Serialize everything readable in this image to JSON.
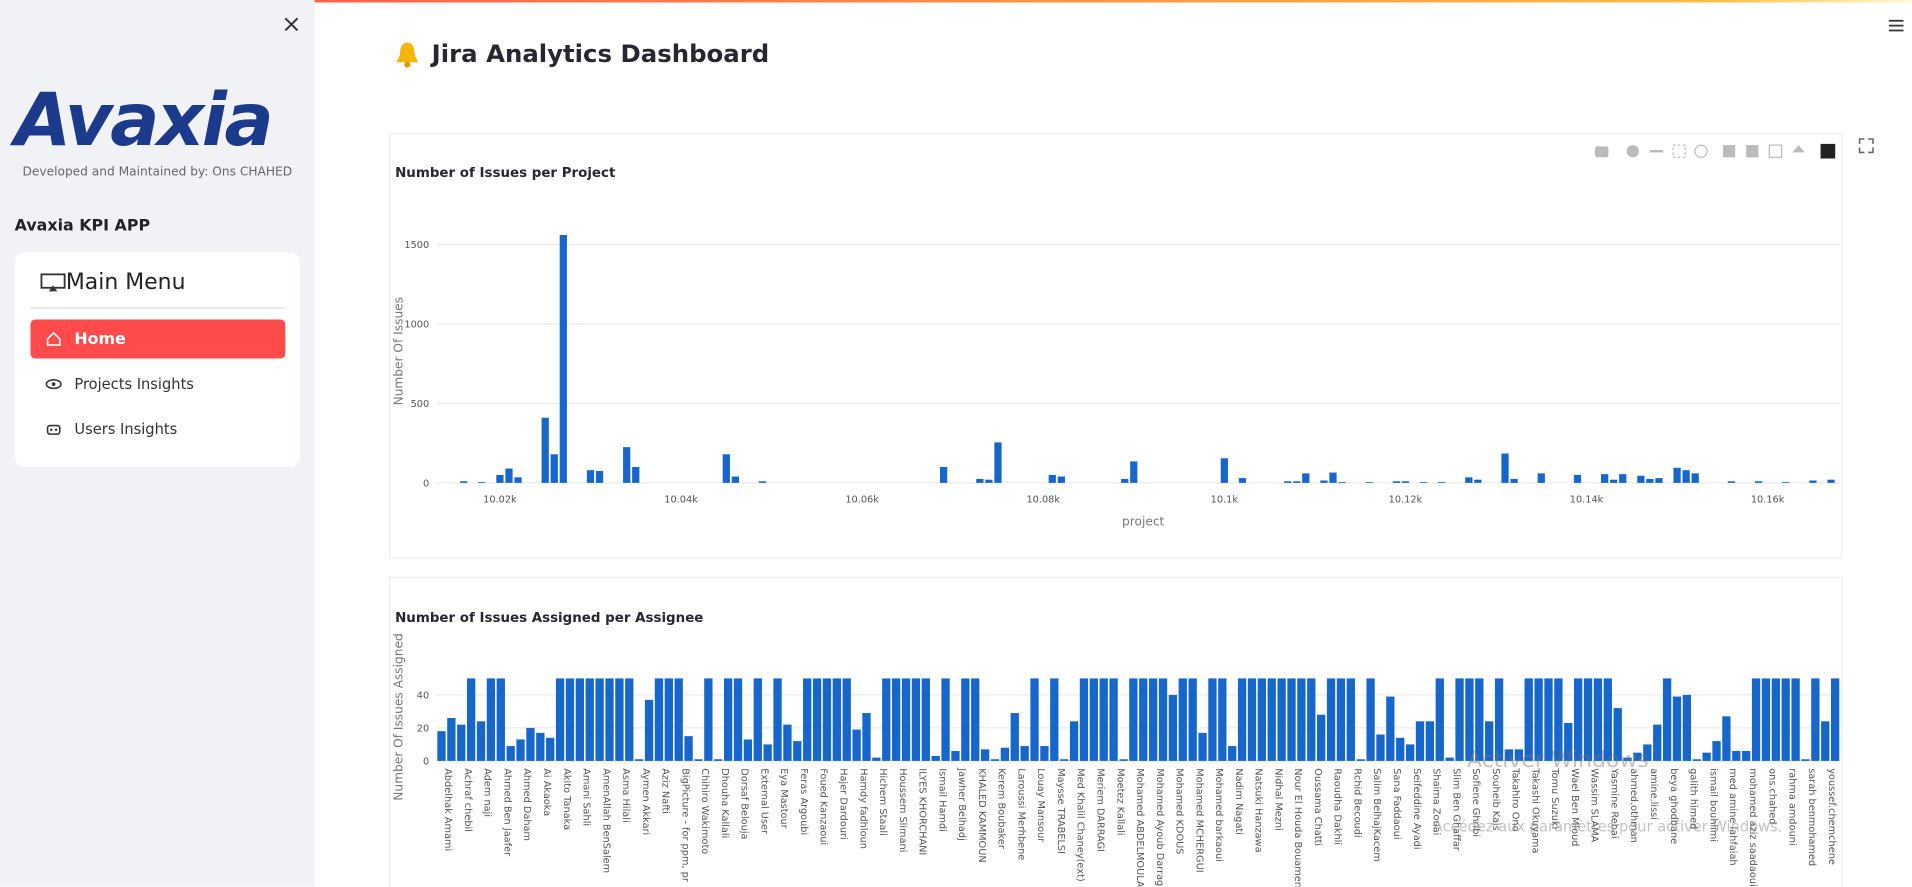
{
  "sidebar": {
    "logo": "Avaxia",
    "credit": "Developed and Maintained by: Ons CHAHED",
    "app_title": "Avaxia KPI APP",
    "menu": {
      "title": "Main Menu",
      "items": [
        "Home",
        "Projects Insights",
        "Users Insights"
      ],
      "selected": 0
    }
  },
  "header": {
    "title": "Jira Analytics Dashboard"
  },
  "chart_data": [
    {
      "type": "bar",
      "title": "Number of Issues per Project",
      "xlabel": "project",
      "ylabel": "Number Of Issues",
      "color": "#1666cc",
      "grid": true,
      "x": [
        10016,
        10018,
        10020,
        10021,
        10022,
        10025,
        10026,
        10027,
        10030,
        10031,
        10034,
        10035,
        10045,
        10046,
        10049,
        10069,
        10073,
        10074,
        10075,
        10081,
        10082,
        10089,
        10090,
        10100,
        10102,
        10107,
        10108,
        10109,
        10111,
        10112,
        10113,
        10116,
        10119,
        10120,
        10122,
        10124,
        10127,
        10128,
        10131,
        10132,
        10135,
        10139,
        10142,
        10143,
        10144,
        10146,
        10147,
        10148,
        10150,
        10151,
        10152,
        10156,
        10159,
        10162,
        10165,
        10167
      ],
      "values": [
        10,
        5,
        50,
        90,
        35,
        410,
        180,
        1560,
        80,
        75,
        225,
        100,
        180,
        40,
        10,
        100,
        25,
        20,
        255,
        50,
        40,
        25,
        135,
        155,
        30,
        10,
        10,
        60,
        15,
        65,
        5,
        5,
        10,
        10,
        5,
        5,
        35,
        20,
        185,
        25,
        60,
        50,
        55,
        20,
        55,
        45,
        25,
        30,
        95,
        80,
        60,
        10,
        10,
        5,
        15,
        20
      ],
      "xlim": [
        10013,
        10168
      ],
      "xticks": [
        {
          "value": 10020,
          "label": "10.02k"
        },
        {
          "value": 10040,
          "label": "10.04k"
        },
        {
          "value": 10060,
          "label": "10.06k"
        },
        {
          "value": 10080,
          "label": "10.08k"
        },
        {
          "value": 10100,
          "label": "10.1k"
        },
        {
          "value": 10120,
          "label": "10.12k"
        },
        {
          "value": 10140,
          "label": "10.14k"
        },
        {
          "value": 10160,
          "label": "10.16k"
        }
      ],
      "ylim": [
        0,
        1650
      ],
      "yticks": [
        0,
        500,
        1000,
        1500
      ]
    },
    {
      "type": "bar",
      "title": "Number of Issues Assigned per Assignee",
      "ylabel": "Number Of Issues Assigned",
      "color": "#1666cc",
      "grid": true,
      "categories": [
        "Abdelhak Amami",
        null,
        "Achraf chebil",
        null,
        "Adem naji",
        null,
        "Ahmed Ben Jaafer",
        null,
        "Ahmed Daham",
        null,
        "Ai Akaoka",
        null,
        "Akito Tanaka",
        null,
        "Amani Sahli",
        null,
        "AmenAllah BenSalem",
        null,
        "Asma Hilali",
        null,
        "Aymen Akkari",
        null,
        "Aziz Nafti",
        null,
        "BigPicture - for ppm, pr",
        null,
        "Chihiro Wakimoto",
        null,
        "Dhouha Kallali",
        null,
        "Dorsaf Belouja",
        null,
        "External User",
        null,
        "Eya Mastour",
        null,
        "Feras Argoubi",
        null,
        "Foued Kanzaoui",
        null,
        "Hajer Dardouri",
        null,
        "Hamdy fadhloun",
        null,
        "Hichem Staali",
        null,
        "Houssem Slimani",
        null,
        "ILYES KHORCHANI",
        null,
        "Ismail Hamdi",
        null,
        "Jawher Belhadj",
        null,
        "KHALED KAMMOUN",
        null,
        "Kerem Boubaker",
        null,
        "Laroussi Merhbene",
        null,
        "Louay Mansour",
        null,
        "Maysse TRABELSI",
        null,
        "Med Khalil Chaney(ext)",
        null,
        "Meriem DARRAGI",
        null,
        "Moetez Kallali",
        null,
        "Mohamed ABDELMOULA",
        null,
        "Mohamed Ayoub Darragi",
        null,
        "Mohamed KDOUS",
        null,
        "Mohamed MCHERGUI",
        null,
        "Mohamed barkaoui",
        null,
        "Nadim Nagati",
        null,
        "Natsuki Hanzawa",
        null,
        "Nidhal Mezni",
        null,
        "Nour El Houda Bouamen",
        null,
        "Oussama Chatti",
        null,
        "Raoudha Dakhli",
        null,
        "Rchid Becoudi",
        null,
        "Salim BelhajKacem",
        null,
        "Sana Faddaoui",
        null,
        "Seifeddine Ayadi",
        null,
        "Shaima Zouai",
        null,
        "Slim Ben Ghaffar",
        null,
        "Sofiene Ghribi",
        null,
        "Souheib Kais",
        null,
        "Takahiro Ono",
        null,
        "Takashi Okuyama",
        null,
        "Tomu Suzuki",
        null,
        "Wael Ben Mloud",
        null,
        "Wassim SLAMA",
        null,
        "Yasmine Rebai",
        null,
        "ahmed.othman",
        null,
        "amine.lissi",
        null,
        "beya ghodbane",
        null,
        "galith himed",
        null,
        "ismail bouhlimi",
        null,
        "med amine lahfaiah",
        null,
        "mohamed aziz saadaoui",
        null,
        "ons.chahed",
        null,
        "rahma amdouni",
        null,
        "sarah benmohamed",
        null,
        "youssef.chemchene",
        null
      ],
      "values": [
        18,
        26,
        22,
        50,
        24,
        50,
        50,
        9,
        13,
        20,
        17,
        14,
        50,
        50,
        50,
        50,
        50,
        50,
        50,
        50,
        1,
        37,
        50,
        50,
        50,
        15,
        1,
        50,
        1,
        50,
        50,
        13,
        50,
        10,
        50,
        22,
        12,
        50,
        50,
        50,
        50,
        50,
        19,
        29,
        2,
        50,
        50,
        50,
        50,
        50,
        3,
        50,
        6,
        50,
        50,
        7,
        1,
        8,
        29,
        9,
        50,
        9,
        50,
        1,
        24,
        50,
        50,
        50,
        50,
        1,
        50,
        50,
        50,
        50,
        40,
        50,
        50,
        17,
        50,
        50,
        9,
        50,
        50,
        50,
        50,
        50,
        50,
        50,
        50,
        28,
        50,
        50,
        50,
        1,
        50,
        16,
        39,
        14,
        10,
        24,
        24,
        50,
        2,
        50,
        50,
        50,
        24,
        50,
        7,
        7,
        50,
        50,
        50,
        50,
        23,
        50,
        50,
        50,
        50,
        32,
        2,
        5,
        10,
        22,
        50,
        39,
        40,
        1,
        5,
        12,
        27,
        6,
        6,
        50,
        50,
        50,
        50,
        50,
        1,
        50,
        24,
        50
      ],
      "ylim": [
        0,
        51
      ],
      "yticks": [
        0,
        20,
        40
      ]
    }
  ],
  "watermark": {
    "title": "Activer Windows",
    "subtitle": "Accédez aux paramètres pour activer Windows."
  }
}
